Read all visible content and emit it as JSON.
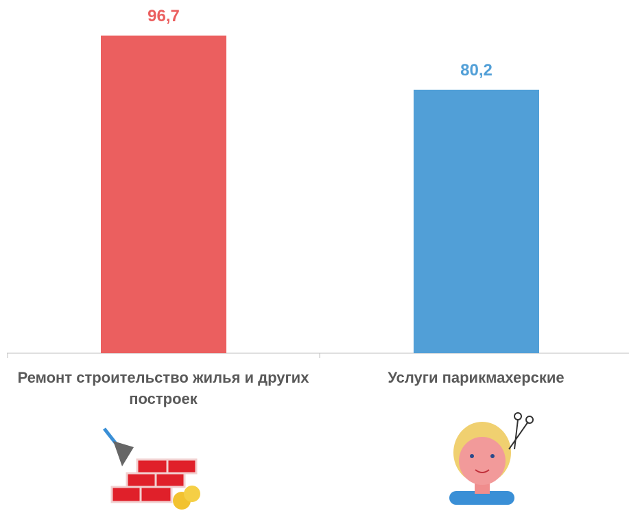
{
  "chart_data": {
    "type": "bar",
    "categories": [
      "Ремонт строительство жилья и других построек",
      "Услуги парикмахерские"
    ],
    "values": [
      96.7,
      80.2
    ],
    "value_labels": [
      "96,7",
      "80,2"
    ],
    "colors": [
      "#eb5f5f",
      "#519fd7"
    ],
    "ylim": [
      0,
      100
    ]
  }
}
